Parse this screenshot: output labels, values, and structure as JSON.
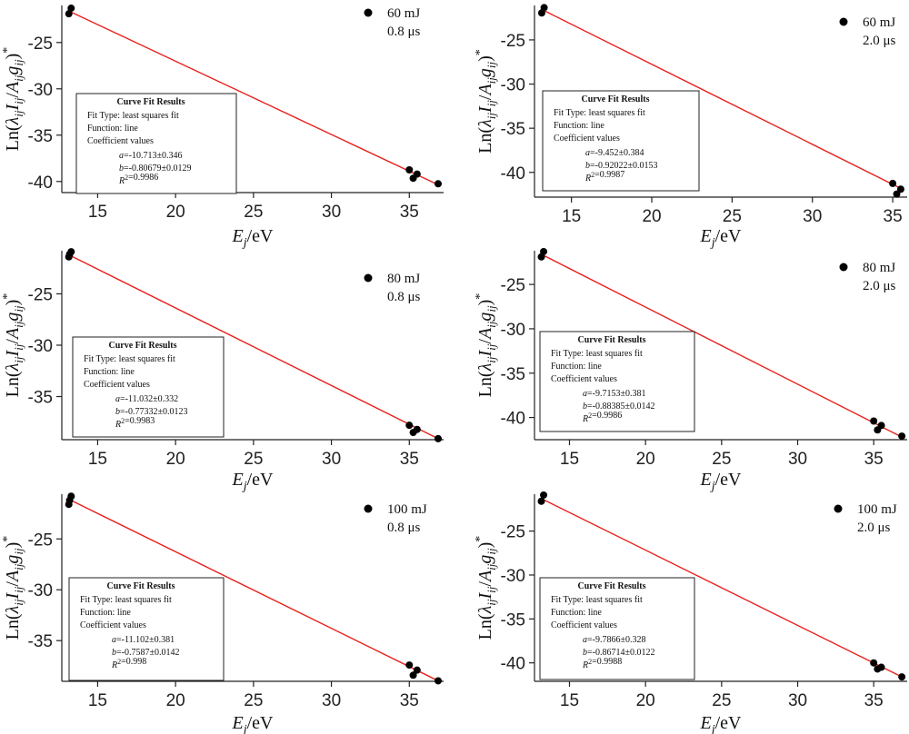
{
  "chart_data": [
    {
      "type": "scatter",
      "xlabel": "E_j/eV",
      "ylabel": "Ln(λ_ij I_ij/A_ij g_ij)*",
      "xlim": [
        12.7,
        37.2
      ],
      "ylim": [
        -41.2,
        -21.0
      ],
      "xticks": [
        "15",
        "20",
        "25",
        "30",
        "35"
      ],
      "yticks": [
        "-25",
        "-30",
        "-35",
        "-40"
      ],
      "legend": {
        "series": "60 mJ",
        "subtitle": "0.8 μs"
      },
      "points": [
        {
          "x": 13.15,
          "y": -21.9
        },
        {
          "x": 13.3,
          "y": -21.3
        },
        {
          "x": 35.0,
          "y": -38.75
        },
        {
          "x": 35.25,
          "y": -39.65
        },
        {
          "x": 35.5,
          "y": -39.2
        },
        {
          "x": 36.85,
          "y": -40.25
        }
      ],
      "fit": {
        "line_color": "#e8201c",
        "x": [
          13.15,
          36.85
        ],
        "y": [
          -21.6,
          -40.35
        ]
      },
      "fit_box": {
        "title": "Curve Fit Results",
        "lines": [
          "Fit Type: least squares fit",
          "Function: line",
          "Coefficient values"
        ],
        "a": "a=-10.713±0.346",
        "b": "b=-0.80679±0.0129",
        "r2": "R²=0.9986"
      }
    },
    {
      "type": "scatter",
      "xlabel": "E_j/eV",
      "ylabel": "Ln(λ_ij I_ij/A_ij g_ij)*",
      "xlim": [
        12.7,
        35.9
      ],
      "ylim": [
        -42.8,
        -21.1
      ],
      "xticks": [
        "15",
        "20",
        "25",
        "30",
        "35"
      ],
      "yticks": [
        "-25",
        "-30",
        "-35",
        "-40"
      ],
      "legend": {
        "series": "60 mJ",
        "subtitle": "2.0 μs"
      },
      "points": [
        {
          "x": 13.15,
          "y": -21.95
        },
        {
          "x": 13.3,
          "y": -21.35
        },
        {
          "x": 35.0,
          "y": -41.25
        },
        {
          "x": 35.25,
          "y": -42.45
        },
        {
          "x": 35.5,
          "y": -41.9
        }
      ],
      "fit": {
        "line_color": "#e8201c",
        "x": [
          13.15,
          35.6
        ],
        "y": [
          -21.55,
          -41.9
        ]
      },
      "fit_box": {
        "title": "Curve Fit Results",
        "lines": [
          "Fit Type: least squares fit",
          "Function: line",
          "Coefficient values"
        ],
        "a": "a=-9.452±0.384",
        "b": "b=-0.92022±0.0153",
        "r2": "R²=0.9987"
      }
    },
    {
      "type": "scatter",
      "xlabel": "E_j/eV",
      "ylabel": "Ln(λ_ij I_ij/A_ij g_ij)*",
      "xlim": [
        12.7,
        37.2
      ],
      "ylim": [
        -39.2,
        -20.8
      ],
      "xticks": [
        "15",
        "20",
        "25",
        "30",
        "35"
      ],
      "yticks": [
        "-25",
        "-30",
        "-35"
      ],
      "legend": {
        "series": "80 mJ",
        "subtitle": "0.8 μs"
      },
      "points": [
        {
          "x": 13.15,
          "y": -21.4
        },
        {
          "x": 13.3,
          "y": -20.9
        },
        {
          "x": 13.2,
          "y": -21.15
        },
        {
          "x": 35.0,
          "y": -37.8
        },
        {
          "x": 35.25,
          "y": -38.5
        },
        {
          "x": 35.5,
          "y": -38.2
        },
        {
          "x": 36.85,
          "y": -39.1
        }
      ],
      "fit": {
        "line_color": "#e8201c",
        "x": [
          13.15,
          36.85
        ],
        "y": [
          -21.2,
          -39.1
        ]
      },
      "fit_box": {
        "title": "Curve Fit Results",
        "lines": [
          "Fit Type: least squares fit",
          "Function: line",
          "Coefficient values"
        ],
        "a": "a=-11.032±0.332",
        "b": "b=-0.77332±0.0123",
        "r2": "R²=0.9983"
      }
    },
    {
      "type": "scatter",
      "xlabel": "E_j/eV",
      "ylabel": "Ln(λ_ij I_ij/A_ij g_ij)*",
      "xlim": [
        12.7,
        37.2
      ],
      "ylim": [
        -42.5,
        -21.2
      ],
      "xticks": [
        "15",
        "20",
        "25",
        "30",
        "35"
      ],
      "yticks": [
        "-25",
        "-30",
        "-35",
        "-40"
      ],
      "legend": {
        "series": "80 mJ",
        "subtitle": "2.0 μs"
      },
      "points": [
        {
          "x": 13.15,
          "y": -21.9
        },
        {
          "x": 13.3,
          "y": -21.3
        },
        {
          "x": 35.0,
          "y": -40.4
        },
        {
          "x": 35.25,
          "y": -41.4
        },
        {
          "x": 35.5,
          "y": -40.9
        },
        {
          "x": 36.85,
          "y": -42.1
        }
      ],
      "fit": {
        "line_color": "#e8201c",
        "x": [
          13.15,
          36.85
        ],
        "y": [
          -21.6,
          -42.2
        ]
      },
      "fit_box": {
        "title": "Curve Fit Results",
        "lines": [
          "Fit Type: least squares fit",
          "Function: line",
          "Coefficient values"
        ],
        "a": "a=-9.7153±0.381",
        "b": "b=-0.88385±0.0142",
        "r2": "R²=0.9986"
      }
    },
    {
      "type": "scatter",
      "xlabel": "E_j/eV",
      "ylabel": "Ln(λ_ij I_ij/A_ij g_ij)*",
      "xlim": [
        12.7,
        37.2
      ],
      "ylim": [
        -39.0,
        -20.6
      ],
      "xticks": [
        "15",
        "20",
        "25",
        "30",
        "35"
      ],
      "yticks": [
        "-25",
        "-30",
        "-35"
      ],
      "legend": {
        "series": "100 mJ",
        "subtitle": "0.8 μs"
      },
      "points": [
        {
          "x": 13.15,
          "y": -21.6
        },
        {
          "x": 13.3,
          "y": -20.8
        },
        {
          "x": 13.2,
          "y": -21.2
        },
        {
          "x": 35.0,
          "y": -37.4
        },
        {
          "x": 35.25,
          "y": -38.4
        },
        {
          "x": 35.5,
          "y": -37.9
        },
        {
          "x": 36.85,
          "y": -38.95
        }
      ],
      "fit": {
        "line_color": "#e8201c",
        "x": [
          13.15,
          36.85
        ],
        "y": [
          -21.1,
          -38.95
        ]
      },
      "fit_box": {
        "title": "Curve Fit Results",
        "lines": [
          "Fit Type: least squares fit",
          "Function: line",
          "Coefficient values"
        ],
        "a": "a=-11.102±0.381",
        "b": "b=-0.7587±0.0142",
        "r2": "R²=0.998"
      }
    },
    {
      "type": "scatter",
      "xlabel": "E_j/eV",
      "ylabel": "Ln(λ_ij I_ij/A_ij g_ij)*",
      "xlim": [
        12.7,
        37.2
      ],
      "ylim": [
        -42.1,
        -20.8
      ],
      "xticks": [
        "15",
        "20",
        "25",
        "30",
        "35"
      ],
      "yticks": [
        "-25",
        "-30",
        "-35",
        "-40"
      ],
      "legend": {
        "series": "100 mJ",
        "subtitle": "2.0 μs"
      },
      "points": [
        {
          "x": 13.15,
          "y": -21.6
        },
        {
          "x": 13.3,
          "y": -20.9
        },
        {
          "x": 35.0,
          "y": -40.0
        },
        {
          "x": 35.25,
          "y": -40.7
        },
        {
          "x": 35.5,
          "y": -40.5
        },
        {
          "x": 36.85,
          "y": -41.6
        }
      ],
      "fit": {
        "line_color": "#e8201c",
        "x": [
          13.15,
          36.85
        ],
        "y": [
          -21.3,
          -41.6
        ]
      },
      "fit_box": {
        "title": "Curve Fit Results",
        "lines": [
          "Fit Type: least squares fit",
          "Function: line",
          "Coefficient values"
        ],
        "a": "a=-9.7866±0.328",
        "b": "b=-0.86714±0.0122",
        "r2": "R²=0.9988"
      }
    }
  ]
}
